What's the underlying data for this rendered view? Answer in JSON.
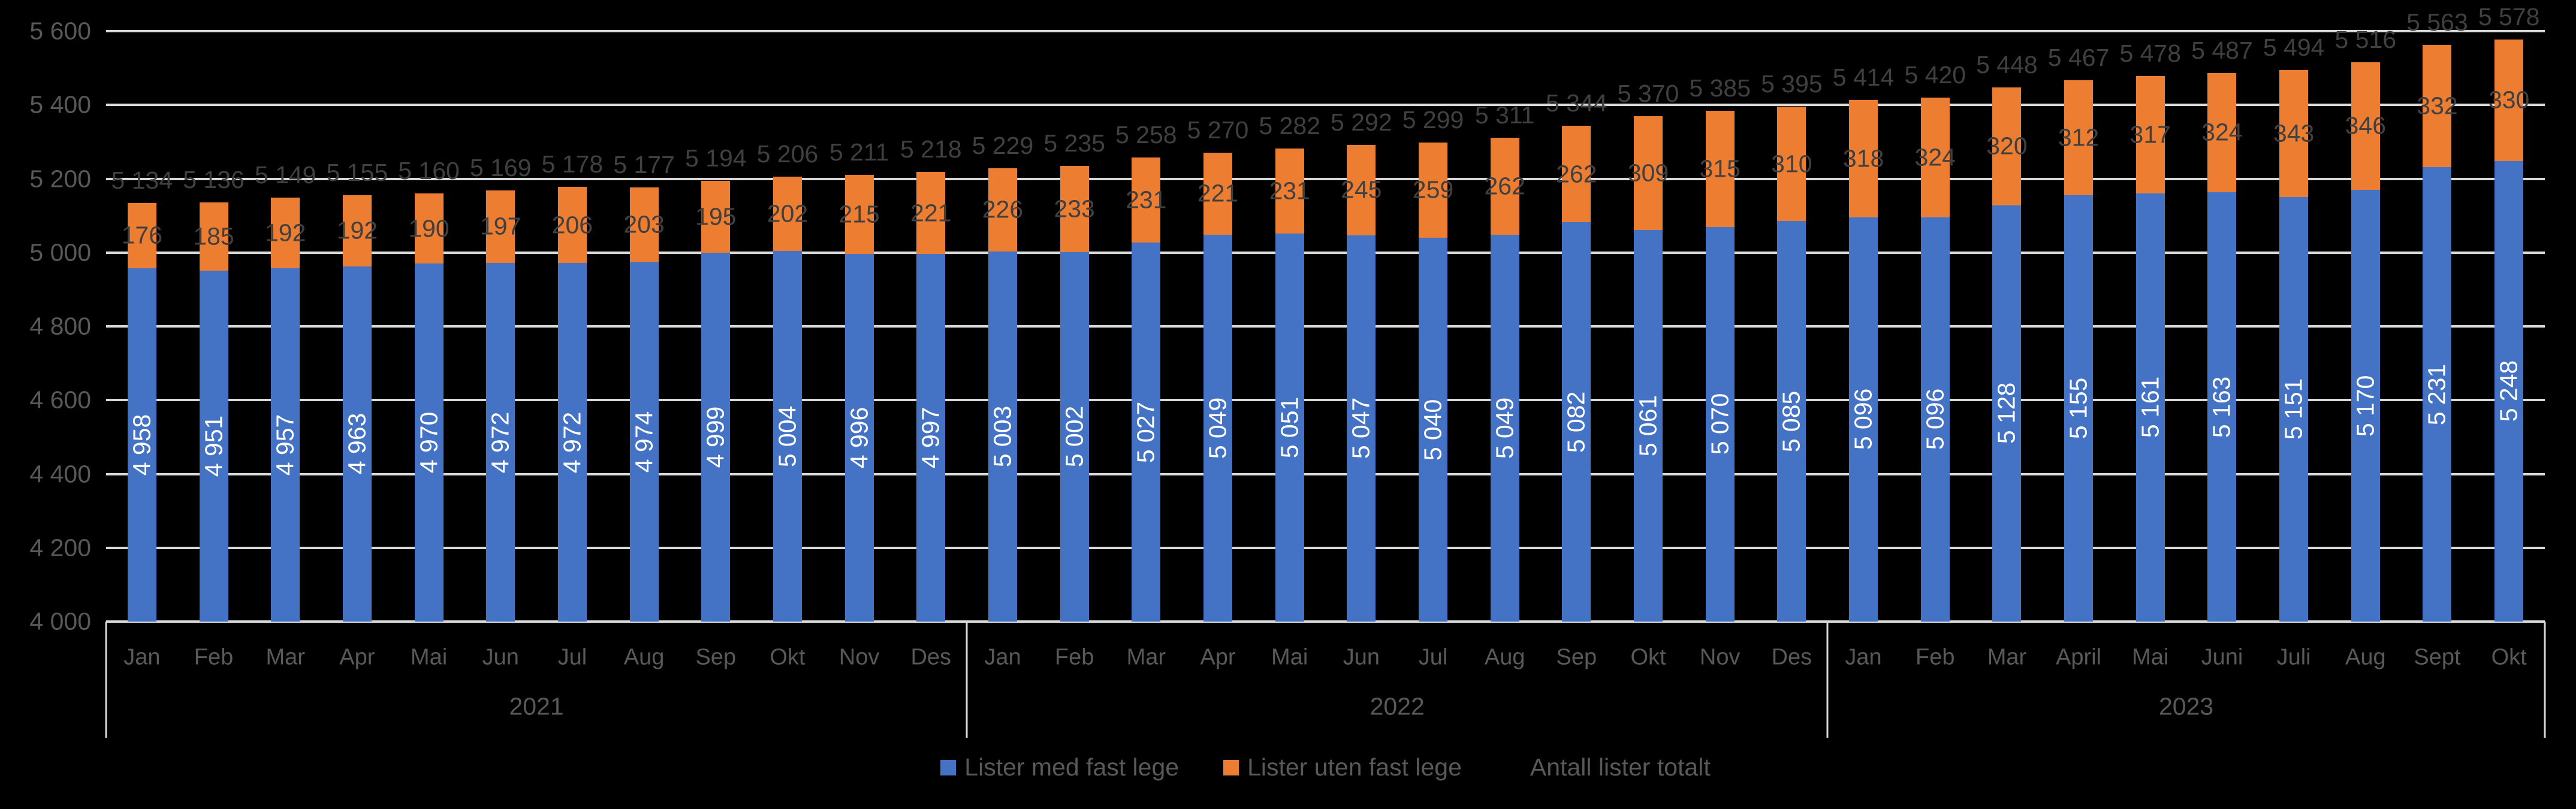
{
  "chart_data": {
    "type": "bar",
    "stacked": true,
    "title": "",
    "categories": [
      "Jan",
      "Feb",
      "Mar",
      "Apr",
      "Mai",
      "Jun",
      "Jul",
      "Aug",
      "Sep",
      "Okt",
      "Nov",
      "Des",
      "Jan",
      "Feb",
      "Mar",
      "Apr",
      "Mai",
      "Jun",
      "Jul",
      "Aug",
      "Sep",
      "Okt",
      "Nov",
      "Des",
      "Jan",
      "Feb",
      "Mar",
      "April",
      "Mai",
      "Juni",
      "Juli",
      "Aug",
      "Sept",
      "Okt"
    ],
    "year_groups": [
      {
        "label": "2021",
        "count": 12
      },
      {
        "label": "2022",
        "count": 12
      },
      {
        "label": "2023",
        "count": 10
      }
    ],
    "series": [
      {
        "name": "Lister med fast lege",
        "color": "#4472C4",
        "label_color": "#FFFFFF",
        "values": [
          4958,
          4951,
          4957,
          4963,
          4970,
          4972,
          4972,
          4974,
          4999,
          5004,
          4996,
          4997,
          5003,
          5002,
          5027,
          5049,
          5051,
          5047,
          5040,
          5049,
          5082,
          5061,
          5070,
          5085,
          5096,
          5096,
          5128,
          5155,
          5161,
          5163,
          5151,
          5170,
          5231,
          5248
        ]
      },
      {
        "name": "Lister uten fast lege",
        "color": "#ED7D31",
        "label_color": "#404040",
        "values": [
          176,
          185,
          192,
          192,
          190,
          197,
          206,
          203,
          195,
          202,
          215,
          221,
          226,
          233,
          231,
          221,
          231,
          245,
          259,
          262,
          262,
          309,
          315,
          310,
          318,
          324,
          320,
          312,
          317,
          324,
          343,
          346,
          332,
          330
        ]
      }
    ],
    "totals_name": "Antall lister totalt",
    "totals_label_color": "#404040",
    "totals": [
      5134,
      5136,
      5149,
      5155,
      5160,
      5169,
      5178,
      5177,
      5194,
      5206,
      5211,
      5218,
      5229,
      5235,
      5258,
      5270,
      5282,
      5292,
      5299,
      5311,
      5344,
      5370,
      5385,
      5395,
      5414,
      5420,
      5448,
      5467,
      5478,
      5487,
      5494,
      5516,
      5563,
      5578
    ],
    "xlabel": "",
    "ylabel": "",
    "ylim": [
      4000,
      5600
    ],
    "ytick_step": 200,
    "grid": true,
    "gridline_color": "#D9D9D9",
    "axis_text_color": "#595959",
    "background_color": "#000000",
    "legend_position": "bottom"
  }
}
